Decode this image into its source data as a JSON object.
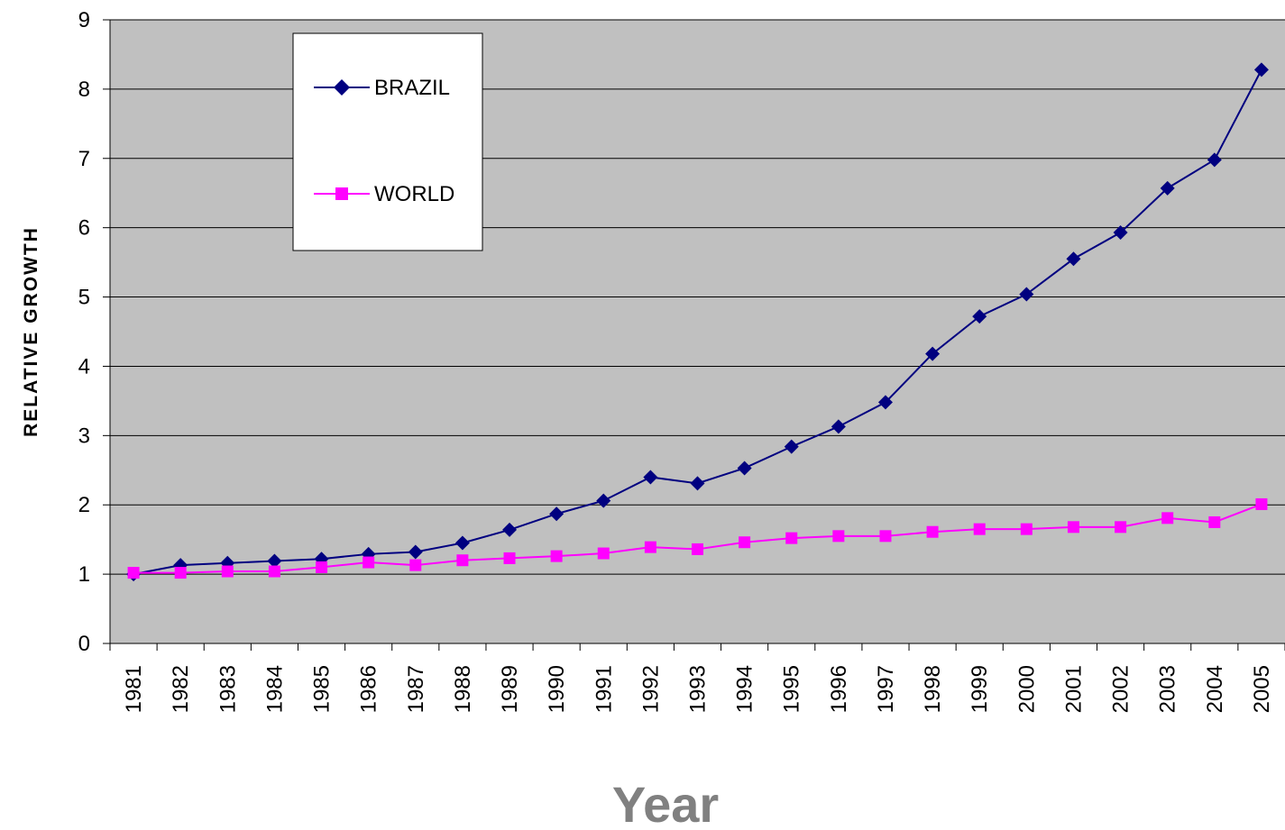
{
  "chart_data": {
    "type": "line",
    "title": "",
    "xlabel": "Year",
    "ylabel": "RELATIVE GROWTH",
    "ylim": [
      0,
      9
    ],
    "yticks": [
      0,
      1,
      2,
      3,
      4,
      5,
      6,
      7,
      8,
      9
    ],
    "grid": true,
    "legend_position": "top-left",
    "plot_background": "#C0C0C0",
    "categories": [
      "1981",
      "1982",
      "1983",
      "1984",
      "1985",
      "1986",
      "1987",
      "1988",
      "1989",
      "1990",
      "1991",
      "1992",
      "1993",
      "1994",
      "1995",
      "1996",
      "1997",
      "1998",
      "1999",
      "2000",
      "2001",
      "2002",
      "2003",
      "2004",
      "2005"
    ],
    "series": [
      {
        "name": "BRAZIL",
        "color": "#000080",
        "marker": "diamond",
        "values": [
          1.0,
          1.13,
          1.16,
          1.19,
          1.22,
          1.29,
          1.32,
          1.45,
          1.64,
          1.87,
          2.06,
          2.4,
          2.31,
          2.53,
          2.84,
          3.13,
          3.48,
          4.18,
          4.72,
          5.04,
          5.55,
          5.93,
          6.57,
          6.98,
          8.28
        ]
      },
      {
        "name": "WORLD",
        "color": "#FF00FF",
        "marker": "square",
        "values": [
          1.02,
          1.02,
          1.04,
          1.04,
          1.1,
          1.17,
          1.13,
          1.2,
          1.23,
          1.26,
          1.3,
          1.39,
          1.36,
          1.46,
          1.52,
          1.55,
          1.55,
          1.61,
          1.65,
          1.65,
          1.68,
          1.68,
          1.81,
          1.75,
          2.01
        ]
      }
    ]
  }
}
